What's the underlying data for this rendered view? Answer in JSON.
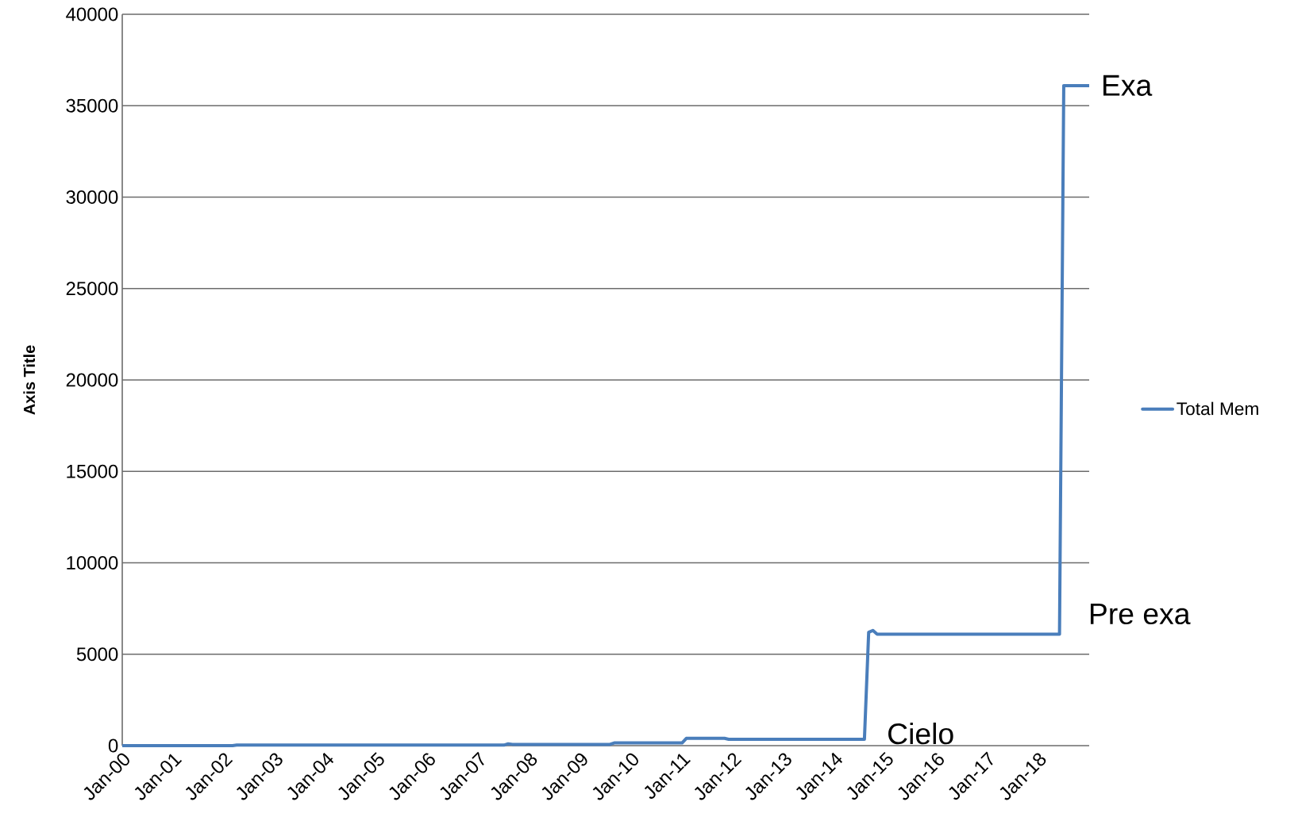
{
  "chart_data": {
    "type": "line",
    "ylabel": "Axis Title",
    "x": [
      "2000-01",
      "2002-03",
      "2002-04",
      "2007-07",
      "2007-08",
      "2007-09",
      "2009-08",
      "2009-09",
      "2011-01",
      "2011-02",
      "2011-11",
      "2011-12",
      "2014-08",
      "2014-09",
      "2014-10",
      "2014-11",
      "2018-06",
      "2018-07",
      "2019-01"
    ],
    "series": [
      {
        "name": "Total Mem",
        "color": "#4a7ebb",
        "values": [
          0,
          0,
          30,
          30,
          100,
          70,
          70,
          150,
          150,
          400,
          400,
          350,
          350,
          6200,
          6300,
          6100,
          6100,
          36100,
          36100
        ]
      }
    ],
    "xlim": [
      "2000-01",
      "2019-01"
    ],
    "xticks": [
      {
        "value": "2000-01",
        "label": "Jan-00"
      },
      {
        "value": "2001-01",
        "label": "Jan-01"
      },
      {
        "value": "2002-01",
        "label": "Jan-02"
      },
      {
        "value": "2003-01",
        "label": "Jan-03"
      },
      {
        "value": "2004-01",
        "label": "Jan-04"
      },
      {
        "value": "2005-01",
        "label": "Jan-05"
      },
      {
        "value": "2006-01",
        "label": "Jan-06"
      },
      {
        "value": "2007-01",
        "label": "Jan-07"
      },
      {
        "value": "2008-01",
        "label": "Jan-08"
      },
      {
        "value": "2009-01",
        "label": "Jan-09"
      },
      {
        "value": "2010-01",
        "label": "Jan-10"
      },
      {
        "value": "2011-01",
        "label": "Jan-11"
      },
      {
        "value": "2012-01",
        "label": "Jan-12"
      },
      {
        "value": "2013-01",
        "label": "Jan-13"
      },
      {
        "value": "2014-01",
        "label": "Jan-14"
      },
      {
        "value": "2015-01",
        "label": "Jan-15"
      },
      {
        "value": "2016-01",
        "label": "Jan-16"
      },
      {
        "value": "2017-01",
        "label": "Jan-17"
      },
      {
        "value": "2018-01",
        "label": "Jan-18"
      }
    ],
    "ylim": [
      0,
      40000
    ],
    "yticks": [
      0,
      5000,
      10000,
      15000,
      20000,
      25000,
      30000,
      35000,
      40000
    ],
    "grid": "y",
    "legend": "right",
    "marker": "none",
    "line_style": "solid",
    "annotations": [
      {
        "text": "Exa",
        "x": "2019-01",
        "y": 36100
      },
      {
        "text": "Pre exa",
        "x": "2018-07",
        "y": 6100
      },
      {
        "text": "Cielo",
        "x": "2014-08",
        "y": 350
      }
    ]
  }
}
